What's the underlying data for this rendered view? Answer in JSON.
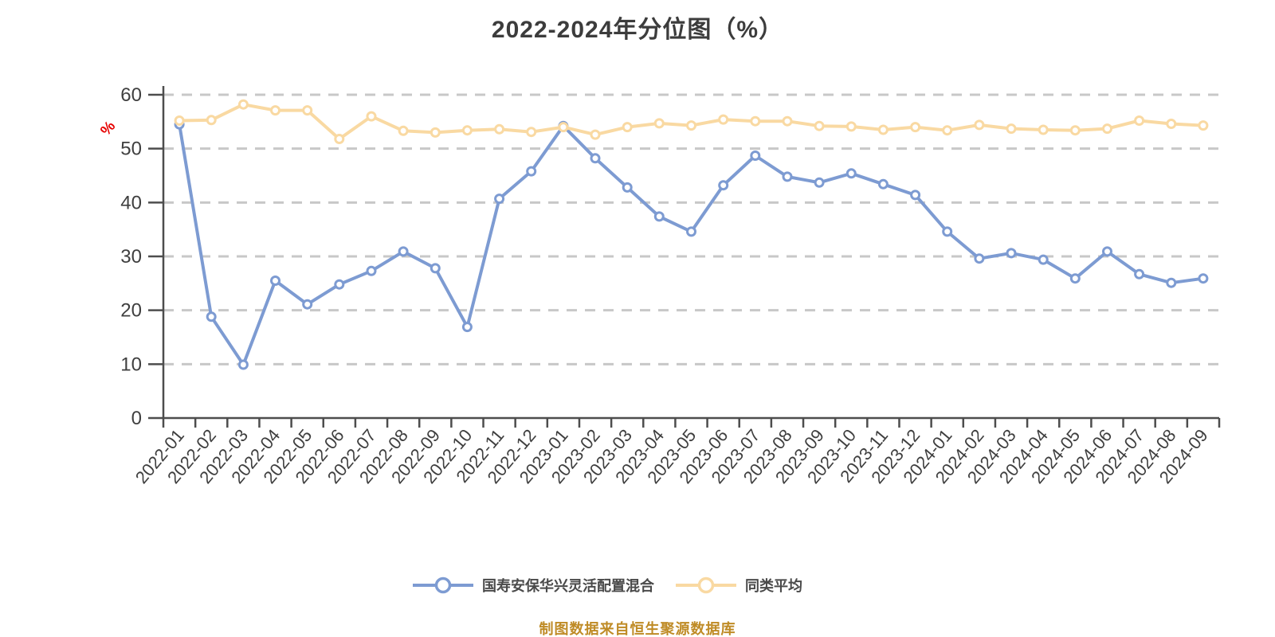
{
  "title": "2022-2024年分位图（%）",
  "caption": "制图数据来自恒生聚源数据库",
  "colors": {
    "fund_line": "#7D9BD2",
    "peer_line": "#F9D9A2",
    "marker_fill": "#FFFFFF",
    "grid": "#C8C8C8",
    "axis": "#4D4D4D",
    "tick_label": "#3F3F3F",
    "title": "#3C3C3C",
    "unit_label": "#E60000",
    "caption": "#BF8B26",
    "legend_text": "#4A4A4A",
    "background": "#FFFFFF"
  },
  "legend": {
    "items": [
      {
        "label": "国寿安保华兴灵活配置混合",
        "series_key": "fund"
      },
      {
        "label": "同类平均",
        "series_key": "peer"
      }
    ]
  },
  "y_axis": {
    "unit": "%",
    "min": 0,
    "max": 60,
    "ticks": [
      0,
      10,
      20,
      30,
      40,
      50,
      60
    ]
  },
  "chart_data": {
    "type": "line",
    "title": "2022-2024年分位图（%）",
    "xlabel": "",
    "ylabel": "%",
    "ylim": [
      0,
      60
    ],
    "grid": true,
    "grid_style": "dashed",
    "legend_position": "bottom",
    "categories": [
      "2022-01",
      "2022-02",
      "2022-03",
      "2022-04",
      "2022-05",
      "2022-06",
      "2022-07",
      "2022-08",
      "2022-09",
      "2022-10",
      "2022-11",
      "2022-12",
      "2023-01",
      "2023-02",
      "2023-03",
      "2023-04",
      "2023-05",
      "2023-06",
      "2023-07",
      "2023-08",
      "2023-09",
      "2023-10",
      "2023-11",
      "2023-12",
      "2024-01",
      "2024-02",
      "2024-03",
      "2024-04",
      "2024-05",
      "2024-06",
      "2024-07",
      "2024-08",
      "2024-09"
    ],
    "series": [
      {
        "name": "国寿安保华兴灵活配置混合",
        "key": "fund",
        "color": "#7D9BD2",
        "values": [
          54.5,
          18.8,
          9.9,
          25.5,
          21.1,
          24.8,
          27.3,
          30.9,
          27.8,
          16.9,
          40.7,
          45.8,
          54.2,
          48.2,
          42.8,
          37.4,
          34.6,
          43.2,
          48.7,
          44.8,
          43.7,
          45.4,
          43.4,
          41.4,
          34.6,
          29.6,
          30.6,
          29.4,
          25.9,
          30.9,
          26.7,
          25.1,
          25.9
        ]
      },
      {
        "name": "同类平均",
        "key": "peer",
        "color": "#F9D9A2",
        "values": [
          55.2,
          55.3,
          58.2,
          57.1,
          57.1,
          51.8,
          56.0,
          53.3,
          53.0,
          53.4,
          53.6,
          53.1,
          54.0,
          52.6,
          54.0,
          54.7,
          54.3,
          55.4,
          55.1,
          55.1,
          54.2,
          54.1,
          53.5,
          54.0,
          53.4,
          54.4,
          53.7,
          53.5,
          53.4,
          53.7,
          55.2,
          54.6,
          54.3
        ]
      }
    ]
  }
}
